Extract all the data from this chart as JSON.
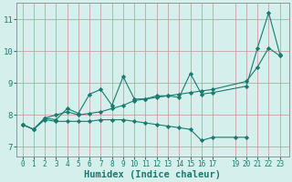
{
  "bg_color": "#d5f0ec",
  "line_color": "#1a7a6e",
  "grid_color": "#c8a0a0",
  "xlabel": "Humidex (Indice chaleur)",
  "xlabel_fontsize": 7.5,
  "yticks": [
    7,
    8,
    9,
    10,
    11
  ],
  "xticks": [
    0,
    1,
    2,
    3,
    4,
    5,
    6,
    7,
    8,
    9,
    10,
    11,
    12,
    13,
    14,
    15,
    16,
    17,
    19,
    20,
    21,
    22,
    23
  ],
  "xlim": [
    -0.5,
    23.8
  ],
  "ylim": [
    6.7,
    11.5
  ],
  "line1_x": [
    0,
    1,
    2,
    3,
    4,
    5,
    6,
    7,
    8,
    9,
    10,
    11,
    12,
    13,
    14,
    15,
    16,
    17,
    20,
    21,
    22,
    23
  ],
  "line1_y": [
    7.7,
    7.55,
    7.9,
    7.85,
    8.2,
    8.05,
    8.65,
    8.8,
    8.3,
    9.2,
    8.5,
    8.5,
    8.6,
    8.6,
    8.55,
    9.3,
    8.65,
    8.7,
    8.9,
    10.1,
    11.2,
    9.9
  ],
  "line2_x": [
    0,
    1,
    2,
    3,
    4,
    5,
    6,
    7,
    8,
    9,
    10,
    11,
    12,
    13,
    14,
    15,
    16,
    17,
    20,
    21,
    22,
    23
  ],
  "line2_y": [
    7.7,
    7.55,
    7.9,
    8.0,
    8.1,
    8.0,
    8.05,
    8.1,
    8.2,
    8.3,
    8.45,
    8.5,
    8.55,
    8.6,
    8.65,
    8.7,
    8.75,
    8.8,
    9.05,
    9.5,
    10.1,
    9.85
  ],
  "line3_x": [
    0,
    1,
    2,
    3,
    4,
    5,
    6,
    7,
    8,
    9,
    10,
    11,
    12,
    13,
    14,
    15,
    16,
    17,
    19,
    20
  ],
  "line3_y": [
    7.7,
    7.55,
    7.85,
    7.8,
    7.8,
    7.8,
    7.8,
    7.85,
    7.85,
    7.85,
    7.8,
    7.75,
    7.7,
    7.65,
    7.6,
    7.55,
    7.2,
    7.3,
    7.3,
    7.3
  ]
}
